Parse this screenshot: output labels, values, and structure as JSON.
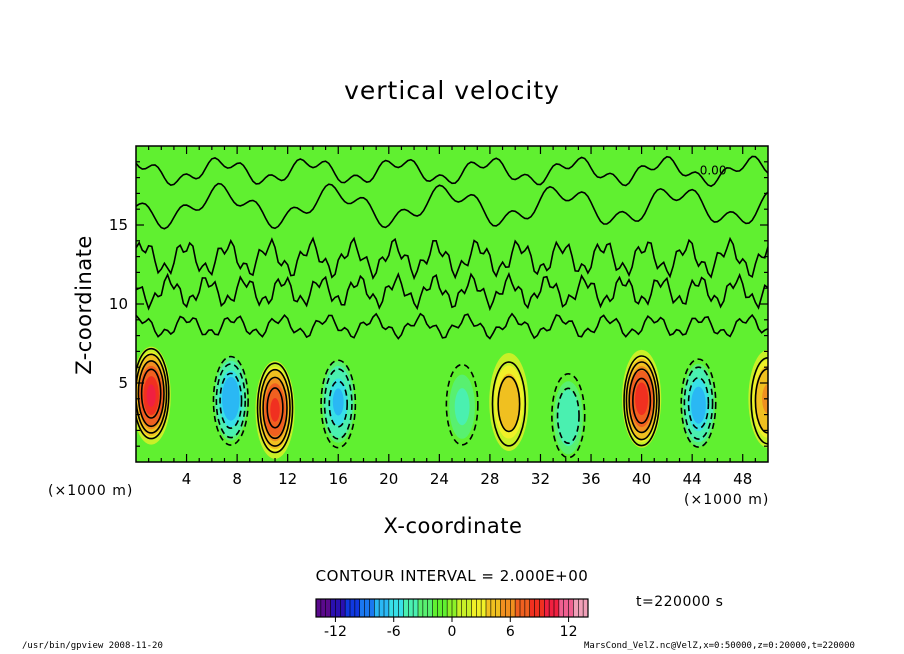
{
  "chart_data": {
    "type": "heatmap",
    "title": "vertical velocity",
    "xlabel": "X-coordinate",
    "ylabel": "Z-coordinate",
    "x_unit": "(×1000 m)",
    "y_unit": "(×1000 m)",
    "x_range": [
      0,
      50
    ],
    "y_range": [
      0,
      20
    ],
    "x_ticks": [
      4,
      8,
      12,
      16,
      20,
      24,
      28,
      32,
      36,
      40,
      44,
      48
    ],
    "y_ticks": [
      5,
      10,
      15
    ],
    "contour_interval_text": "CONTOUR INTERVAL = 2.000E+00",
    "contour_label": "0.00",
    "time_label": "t=220000 s",
    "colorbar": {
      "range": [
        -14,
        14
      ],
      "ticks": [
        -12,
        -6,
        0,
        6,
        12
      ],
      "colors": [
        "#5a0a8c",
        "#2a10b0",
        "#1038e0",
        "#1a78f0",
        "#2ab8f4",
        "#38e0e8",
        "#4af0b0",
        "#58f070",
        "#60f030",
        "#8cf028",
        "#c8f028",
        "#f0f028",
        "#f0c020",
        "#f09020",
        "#f06020",
        "#f03020",
        "#f02040",
        "#f06090",
        "#f0a0b8"
      ]
    },
    "cells": [
      {
        "x": 1.2,
        "z": 4.2,
        "w": 9.5
      },
      {
        "x": 7.5,
        "z": 4.0,
        "w": -7.5
      },
      {
        "x": 11.0,
        "z": 3.3,
        "w": 8.5
      },
      {
        "x": 16.0,
        "z": 3.8,
        "w": -6.5
      },
      {
        "x": 25.8,
        "z": 3.5,
        "w": -3.5
      },
      {
        "x": 29.5,
        "z": 3.8,
        "w": 4.5
      },
      {
        "x": 34.2,
        "z": 2.8,
        "w": -4.5
      },
      {
        "x": 40.0,
        "z": 4.0,
        "w": 9.0
      },
      {
        "x": 44.5,
        "z": 3.6,
        "w": -7.0
      },
      {
        "x": 50.0,
        "z": 4.0,
        "w": 5.5
      }
    ]
  },
  "footer": {
    "left": "/usr/bin/gpview   2008-11-20",
    "right": "MarsCond_VelZ.nc@VelZ,x=0:50000,z=0:20000,t=220000"
  }
}
